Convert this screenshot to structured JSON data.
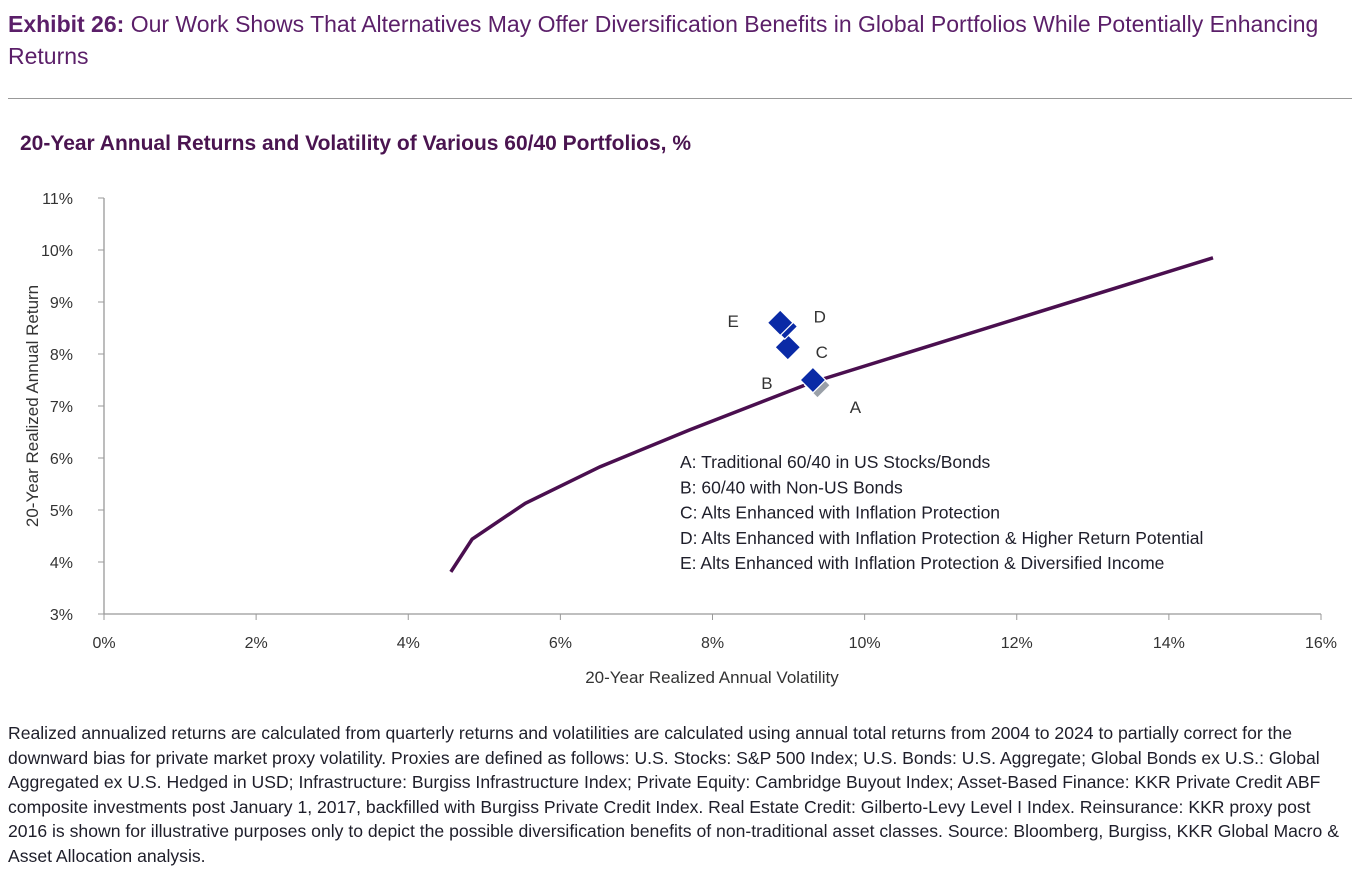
{
  "header": {
    "exhibit_label": "Exhibit 26:",
    "exhibit_title": " Our Work Shows That Alternatives May Offer Diversification Benefits in Global Portfolios While Potentially Enhancing Returns"
  },
  "chart_data": {
    "type": "scatter",
    "title": "20-Year Annual Returns and Volatility of Various 60/40 Portfolios, %",
    "xlabel": "20-Year Realized Annual Volatility",
    "ylabel": "20-Year Realized Annual Return",
    "xlim": [
      0,
      16
    ],
    "ylim": [
      3,
      11
    ],
    "xticks": [
      "0%",
      "2%",
      "4%",
      "6%",
      "8%",
      "10%",
      "12%",
      "14%",
      "16%"
    ],
    "yticks": [
      "3%",
      "4%",
      "5%",
      "6%",
      "7%",
      "8%",
      "9%",
      "10%",
      "11%"
    ],
    "frontier": {
      "x": [
        4.56,
        4.84,
        5.54,
        6.52,
        7.7,
        9.3,
        14.58
      ],
      "y": [
        3.81,
        4.44,
        5.13,
        5.83,
        6.54,
        7.45,
        9.85
      ]
    },
    "points": [
      {
        "label": "A",
        "x": 9.38,
        "y": 7.4,
        "color": "#9aa0a8"
      },
      {
        "label": "B",
        "x": 9.32,
        "y": 7.5,
        "color": "#0a2aa6"
      },
      {
        "label": "C",
        "x": 8.99,
        "y": 8.13,
        "color": "#0a2aa6"
      },
      {
        "label": "D",
        "x": 8.95,
        "y": 8.53,
        "color": "#0a2aa6"
      },
      {
        "label": "E",
        "x": 8.89,
        "y": 8.6,
        "color": "#0a2aa6"
      }
    ],
    "legend": [
      "A: Traditional 60/40 in US Stocks/Bonds",
      "B: 60/40 with Non-US Bonds",
      "C: Alts Enhanced with Inflation Protection",
      "D: Alts Enhanced with Inflation Protection & Higher Return Potential",
      "E: Alts Enhanced with Inflation Protection & Diversified Income"
    ],
    "line_color": "#4a0f4f"
  },
  "footnote": "Realized annualized returns are calculated from quarterly returns and volatilities are calculated using annual total returns from 2004 to 2024 to partially correct for the downward bias for private market proxy volatility. Proxies are defined as follows: U.S. Stocks: S&P 500 Index; U.S. Bonds: U.S. Aggregate; Global Bonds ex U.S.: Global Aggregated ex U.S. Hedged in USD; Infrastructure: Burgiss Infrastructure Index; Private Equity: Cambridge Buyout Index; Asset-Based Finance: KKR Private Credit ABF composite investments post January 1, 2017, backfilled with Burgiss Private Credit Index. Real Estate Credit: Gilberto-Levy Level I Index. Reinsurance: KKR proxy post 2016 is shown for illustrative purposes only to depict the possible diversification benefits of non-traditional asset classes. Source: Bloomberg, Burgiss, KKR Global Macro & Asset Allocation analysis."
}
